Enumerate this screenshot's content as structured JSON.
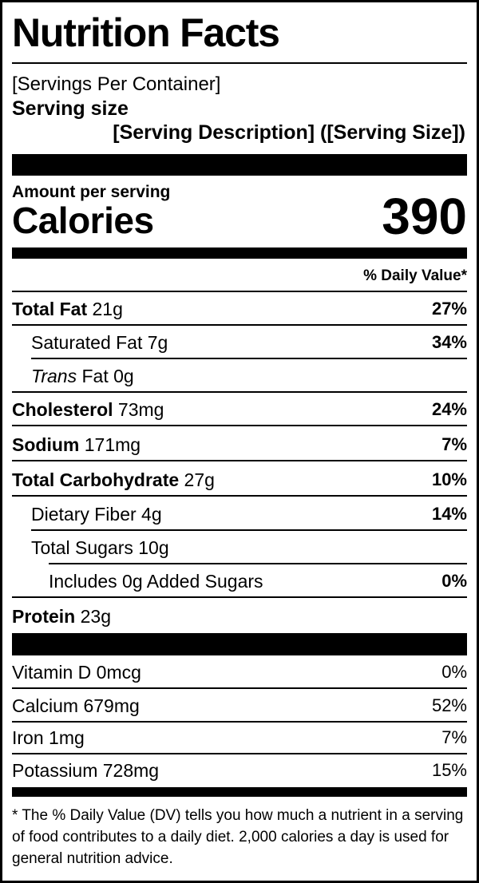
{
  "title": "Nutrition Facts",
  "servings_per_container": "[Servings Per Container]",
  "serving_size_label": "Serving size",
  "serving_size_value": "[Serving Description] ([Serving Size])",
  "amount_per_serving": "Amount per serving",
  "calories_label": "Calories",
  "calories_value": "390",
  "daily_value_header": "% Daily Value*",
  "nutrients": [
    {
      "name": "Total Fat",
      "amount": "21g",
      "dv": "27%"
    },
    {
      "name": "Saturated Fat",
      "amount": "7g",
      "dv": "34%"
    },
    {
      "name_italic": "Trans",
      "name": "Fat",
      "amount": "0g",
      "dv": ""
    },
    {
      "name": "Cholesterol",
      "amount": "73mg",
      "dv": "24%"
    },
    {
      "name": "Sodium",
      "amount": "171mg",
      "dv": "7%"
    },
    {
      "name": "Total Carbohydrate",
      "amount": "27g",
      "dv": "10%"
    },
    {
      "name": "Dietary Fiber",
      "amount": "4g",
      "dv": "14%"
    },
    {
      "name": "Total Sugars",
      "amount": "10g",
      "dv": ""
    },
    {
      "name": "Includes 0g Added Sugars",
      "dv": "0%"
    },
    {
      "name": "Protein",
      "amount": "23g",
      "dv": ""
    }
  ],
  "vitamins": [
    {
      "name": "Vitamin D",
      "amount": "0mcg",
      "dv": "0%"
    },
    {
      "name": "Calcium",
      "amount": "679mg",
      "dv": "52%"
    },
    {
      "name": "Iron",
      "amount": "1mg",
      "dv": "7%"
    },
    {
      "name": "Potassium",
      "amount": "728mg",
      "dv": "15%"
    }
  ],
  "footnote": "* The % Daily Value (DV) tells you how much a nutrient in a serving of food contributes to a daily diet. 2,000 calories a day is used for general nutrition advice."
}
